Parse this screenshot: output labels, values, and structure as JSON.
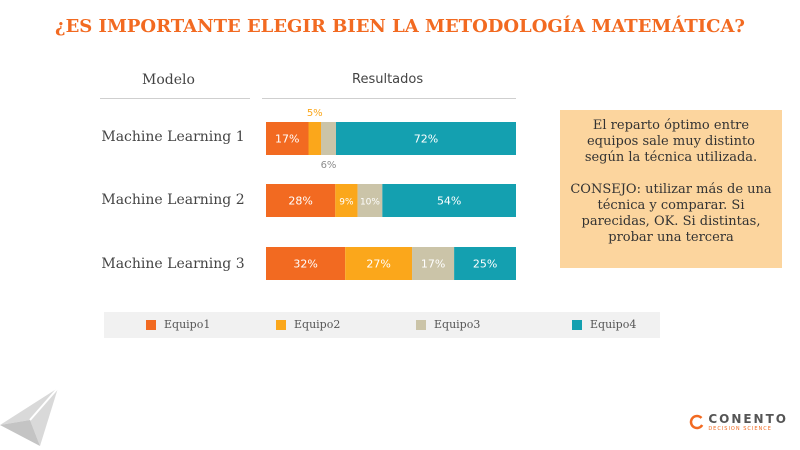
{
  "title": "¿ES IMPORTANTE ELEGIR BIEN LA METODOLOGÍA MATEMÁTICA?",
  "columns": {
    "modelo": "Modelo",
    "resultados": "Resultados"
  },
  "colors": {
    "equipo1": "#F26A21",
    "equipo2": "#FBA71B",
    "equipo3": "#CBC4A8",
    "equipo4": "#14A0B0",
    "accent": "#F26A21",
    "note_bg": "#FCD59E"
  },
  "chart_data": {
    "type": "bar",
    "orientation": "horizontal",
    "stacked": true,
    "categories": [
      "Machine Learning 1",
      "Machine Learning 2",
      "Machine Learning 3"
    ],
    "series": [
      {
        "name": "Equipo1",
        "values": [
          17,
          28,
          32
        ],
        "labels": [
          "17%",
          "28%",
          "32%"
        ]
      },
      {
        "name": "Equipo2",
        "values": [
          5,
          9,
          27
        ],
        "labels": [
          "5%",
          "9%",
          "27%"
        ]
      },
      {
        "name": "Equipo3",
        "values": [
          6,
          10,
          17
        ],
        "labels": [
          "6%",
          "10%",
          "17%"
        ]
      },
      {
        "name": "Equipo4",
        "values": [
          72,
          54,
          25
        ],
        "labels": [
          "72%",
          "54%",
          "25%"
        ]
      }
    ],
    "unit": "%",
    "xlim": [
      0,
      100
    ],
    "legend_position": "bottom",
    "grid": false
  },
  "note": {
    "p1": "El reparto óptimo entre equipos sale muy distinto según la técnica utilizada.",
    "p2": "CONSEJO: utilizar más de una técnica y comparar. Si parecidas, OK. Si distintas, probar una tercera"
  },
  "logo": {
    "name": "CONENTO",
    "tagline": "DECISION SCIENCE"
  }
}
